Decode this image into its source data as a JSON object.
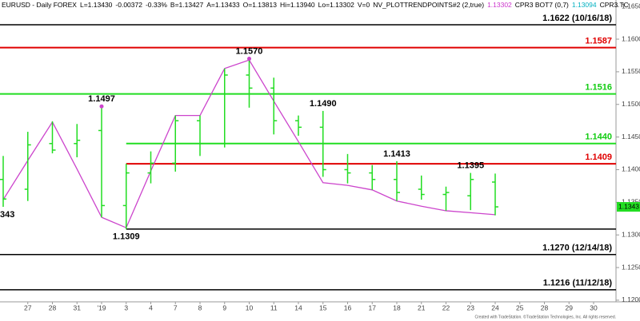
{
  "chart_data": {
    "type": "ohlc",
    "header": [
      {
        "text": "EURUSD - Daily  FOREX",
        "color": "#000000"
      },
      {
        "text": "L=1.13430",
        "color": "#000000"
      },
      {
        "text": "-0.00372",
        "color": "#000000"
      },
      {
        "text": "-0.33%",
        "color": "#000000"
      },
      {
        "text": "B=1.13427",
        "color": "#000000"
      },
      {
        "text": "A=1.13433",
        "color": "#000000"
      },
      {
        "text": "O=1.13813",
        "color": "#000000"
      },
      {
        "text": "Hi=1.13940",
        "color": "#000000"
      },
      {
        "text": "Lo=1.13302",
        "color": "#000000"
      },
      {
        "text": "V=0",
        "color": "#000000"
      },
      {
        "text": "NV_PLOTTRENDPOINTS#2 (2,true)",
        "color": "#000000"
      },
      {
        "text": "1.13302",
        "color": "#cc33cc"
      },
      {
        "text": "CPR3 BOT7 (0,7)",
        "color": "#000000"
      },
      {
        "text": "1.13094",
        "color": "#00b0c0"
      },
      {
        "text": "CPR3 TC",
        "color": "#000000"
      }
    ],
    "categories": [
      null,
      "27",
      "28",
      "31",
      "'19",
      "3",
      "4",
      "7",
      "8",
      "9",
      "10",
      "11",
      "14",
      "15",
      "16",
      "17",
      "18",
      "21",
      "22",
      "23",
      "24",
      "25",
      "28",
      "29",
      "30"
    ],
    "color": "#22dd22",
    "open": [
      1.1385,
      1.137,
      1.144,
      1.144,
      1.146,
      1.1345,
      1.1395,
      1.141,
      1.1475,
      1.144,
      1.1545,
      1.1525,
      1.1475,
      1.1465,
      1.14,
      1.1395,
      1.1385,
      1.137,
      1.1362,
      1.136,
      1.1381,
      null,
      null,
      null,
      null
    ],
    "high": [
      1.1421,
      1.1458,
      1.1474,
      1.147,
      1.1497,
      1.1409,
      1.1428,
      1.1483,
      1.1483,
      1.1555,
      1.157,
      1.1541,
      1.1483,
      1.149,
      1.1424,
      1.1407,
      1.1413,
      1.1391,
      1.1374,
      1.1395,
      1.1394,
      null,
      null,
      null,
      null
    ],
    "low": [
      1.1343,
      1.1352,
      1.1425,
      1.1419,
      1.1327,
      1.1309,
      1.1379,
      1.1397,
      1.1421,
      1.1434,
      1.1495,
      1.1454,
      1.1452,
      1.1389,
      1.1379,
      1.1369,
      1.1352,
      1.1354,
      1.1337,
      1.1338,
      1.133,
      null,
      null,
      null,
      null
    ],
    "close": [
      1.1355,
      1.1438,
      1.143,
      1.1445,
      1.1345,
      1.1395,
      1.141,
      1.1475,
      1.144,
      1.1545,
      1.1525,
      1.1475,
      1.1465,
      1.14,
      1.1395,
      1.1385,
      1.1365,
      1.1362,
      1.1365,
      1.1385,
      1.1343,
      null,
      null,
      null,
      null
    ],
    "trend_line": {
      "color": "#cc44cc",
      "values": [
        1.1354,
        1.1414,
        1.1473,
        1.1401,
        1.1327,
        1.1311,
        1.1398,
        1.1483,
        1.1483,
        1.1555,
        1.1568,
        1.1505,
        1.1443,
        1.138,
        1.1376,
        1.1369,
        1.1352,
        1.1344,
        1.1337,
        1.1334,
        1.1331,
        null,
        null,
        null,
        null
      ]
    },
    "levels": [
      {
        "value": 1.1622,
        "color": "#000000",
        "label": "1.1622 (10/16/18)"
      },
      {
        "value": 1.1587,
        "color": "#e00000",
        "label": "1.1587"
      },
      {
        "value": 1.1516,
        "color": "#22dd22",
        "label": "1.1516"
      },
      {
        "value": 1.144,
        "color": "#22dd22",
        "label": "1.1440",
        "from": 5
      },
      {
        "value": 1.1409,
        "color": "#e00000",
        "label": "1.1409",
        "from": 5
      },
      {
        "value": 1.1309,
        "color": "#000000",
        "from": 5
      },
      {
        "value": 1.127,
        "color": "#000000",
        "label": "1.1270 (12/14/18)"
      },
      {
        "value": 1.1216,
        "color": "#000000",
        "label": "1.1216 (11/12/18)"
      }
    ],
    "annotations": [
      {
        "index": 0,
        "value": 1.1343,
        "label": "343"
      },
      {
        "index": 4,
        "value": 1.1497,
        "label": "1.1497"
      },
      {
        "index": 5,
        "value": 1.1309,
        "label": "1.1309"
      },
      {
        "index": 10,
        "value": 1.157,
        "label": "1.1570"
      },
      {
        "index": 13,
        "value": 1.149,
        "label": "1.1490"
      },
      {
        "index": 16,
        "value": 1.1413,
        "label": "1.1413"
      },
      {
        "index": 19,
        "value": 1.1395,
        "label": "1.1395"
      }
    ],
    "last_price": 1.1343,
    "ylim": [
      1.1195,
      1.166
    ],
    "yticks": [
      {
        "value": 1.165,
        "label": "1.1650"
      },
      {
        "value": 1.16,
        "label": "1.1600"
      },
      {
        "value": 1.155,
        "label": "1.1550"
      },
      {
        "value": 1.15,
        "label": "1.1500"
      },
      {
        "value": 1.145,
        "label": "1.1450"
      },
      {
        "value": 1.14,
        "label": "1.1400"
      },
      {
        "value": 1.135,
        "label": "1.1350"
      },
      {
        "value": 1.13,
        "label": "1.1300"
      },
      {
        "value": 1.125,
        "label": "1.1250"
      },
      {
        "value": 1.12,
        "label": "1.1200"
      }
    ],
    "footer": "Created with TradeStation. ©TradeStation Technologies, Inc. All rights reserved."
  }
}
